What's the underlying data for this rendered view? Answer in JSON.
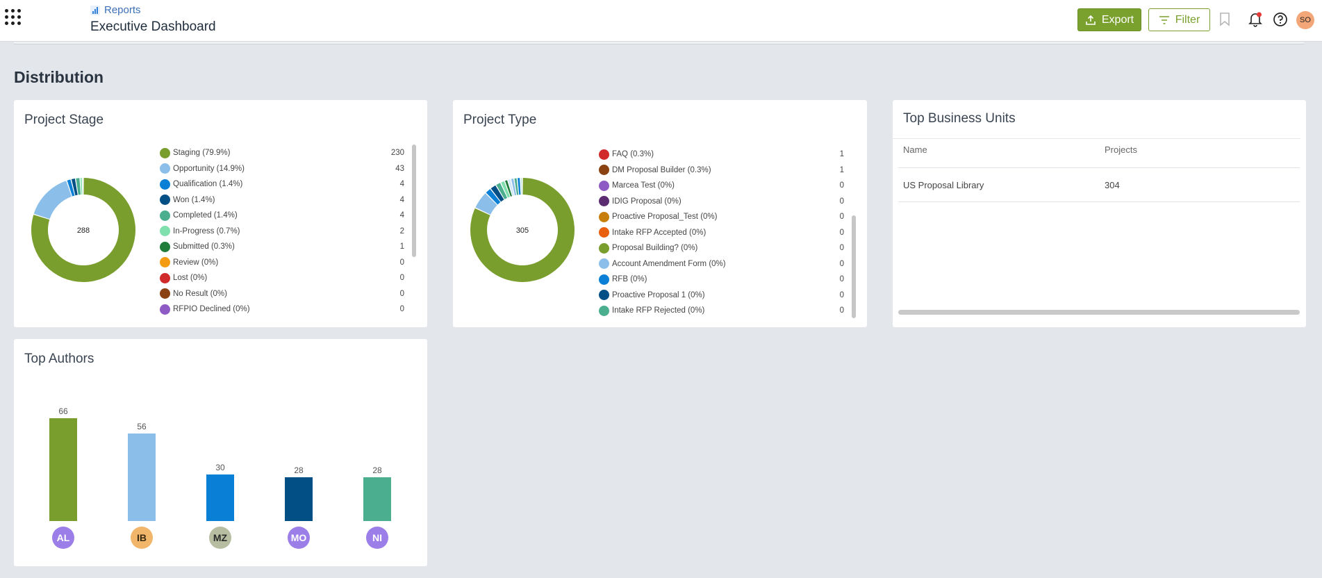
{
  "header": {
    "breadcrumb": "Reports",
    "title": "Executive Dashboard",
    "export_label": "Export",
    "filter_label": "Filter",
    "user_initials": "SO"
  },
  "section_title": "Distribution",
  "project_stage": {
    "title": "Project Stage",
    "total": "288",
    "items": [
      {
        "label": "Staging (79.9%)",
        "count": "230",
        "color": "#7a9e2e",
        "value": 230
      },
      {
        "label": "Opportunity (14.9%)",
        "count": "43",
        "color": "#8bbfe9",
        "value": 43
      },
      {
        "label": "Qualification (1.4%)",
        "count": "4",
        "color": "#0a7fd6",
        "value": 4
      },
      {
        "label": "Won (1.4%)",
        "count": "4",
        "color": "#024f86",
        "value": 4
      },
      {
        "label": "Completed (1.4%)",
        "count": "4",
        "color": "#4aae8f",
        "value": 4
      },
      {
        "label": "In-Progress (0.7%)",
        "count": "2",
        "color": "#7fe0ad",
        "value": 2
      },
      {
        "label": "Submitted (0.3%)",
        "count": "1",
        "color": "#1f7c3a",
        "value": 1
      },
      {
        "label": "Review (0%)",
        "count": "0",
        "color": "#f39c12",
        "value": 0
      },
      {
        "label": "Lost (0%)",
        "count": "0",
        "color": "#d12a2a",
        "value": 0
      },
      {
        "label": "No Result (0%)",
        "count": "0",
        "color": "#8a4212",
        "value": 0
      },
      {
        "label": "RFPIO Declined (0%)",
        "count": "0",
        "color": "#8e5bc4",
        "value": 0
      }
    ]
  },
  "project_type": {
    "title": "Project Type",
    "total": "305",
    "items": [
      {
        "label": "FAQ (0.3%)",
        "count": "1",
        "color": "#d12a2a"
      },
      {
        "label": "DM Proposal Builder (0.3%)",
        "count": "1",
        "color": "#8a4212"
      },
      {
        "label": "Marcea Test (0%)",
        "count": "0",
        "color": "#8e5bc4"
      },
      {
        "label": "IDIG Proposal (0%)",
        "count": "0",
        "color": "#5b2c6f"
      },
      {
        "label": "Proactive Proposal_Test (0%)",
        "count": "0",
        "color": "#c87f0a"
      },
      {
        "label": "Intake RFP Accepted (0%)",
        "count": "0",
        "color": "#e8600f"
      },
      {
        "label": "Proposal Building? (0%)",
        "count": "0",
        "color": "#7a9e2e"
      },
      {
        "label": "Account Amendment Form (0%)",
        "count": "0",
        "color": "#8bbfe9"
      },
      {
        "label": "RFB (0%)",
        "count": "0",
        "color": "#0a7fd6"
      },
      {
        "label": "Proactive Proposal 1 (0%)",
        "count": "0",
        "color": "#024f86"
      },
      {
        "label": "Intake RFP Rejected (0%)",
        "count": "0",
        "color": "#4aae8f"
      }
    ]
  },
  "business_units": {
    "title": "Top Business Units",
    "col_name": "Name",
    "col_projects": "Projects",
    "rows": [
      {
        "name": "US Proposal Library",
        "projects": "304"
      }
    ]
  },
  "top_authors": {
    "title": "Top Authors",
    "authors": [
      {
        "initials": "AL",
        "value": 66,
        "value_label": "66",
        "bar_color": "#7a9e2e",
        "avatar_bg": "#9b7ee8",
        "avatar_fg": "#ffffff"
      },
      {
        "initials": "IB",
        "value": 56,
        "value_label": "56",
        "bar_color": "#8bbfe9",
        "avatar_bg": "#f2b66a",
        "avatar_fg": "#3a2a10"
      },
      {
        "initials": "MZ",
        "value": 30,
        "value_label": "30",
        "bar_color": "#0a7fd6",
        "avatar_bg": "#b7bda0",
        "avatar_fg": "#2a2a2a"
      },
      {
        "initials": "MO",
        "value": 28,
        "value_label": "28",
        "bar_color": "#024f86",
        "avatar_bg": "#9b7ee8",
        "avatar_fg": "#ffffff"
      },
      {
        "initials": "NI",
        "value": 28,
        "value_label": "28",
        "bar_color": "#4aae8f",
        "avatar_bg": "#9b7ee8",
        "avatar_fg": "#ffffff"
      }
    ]
  }
}
